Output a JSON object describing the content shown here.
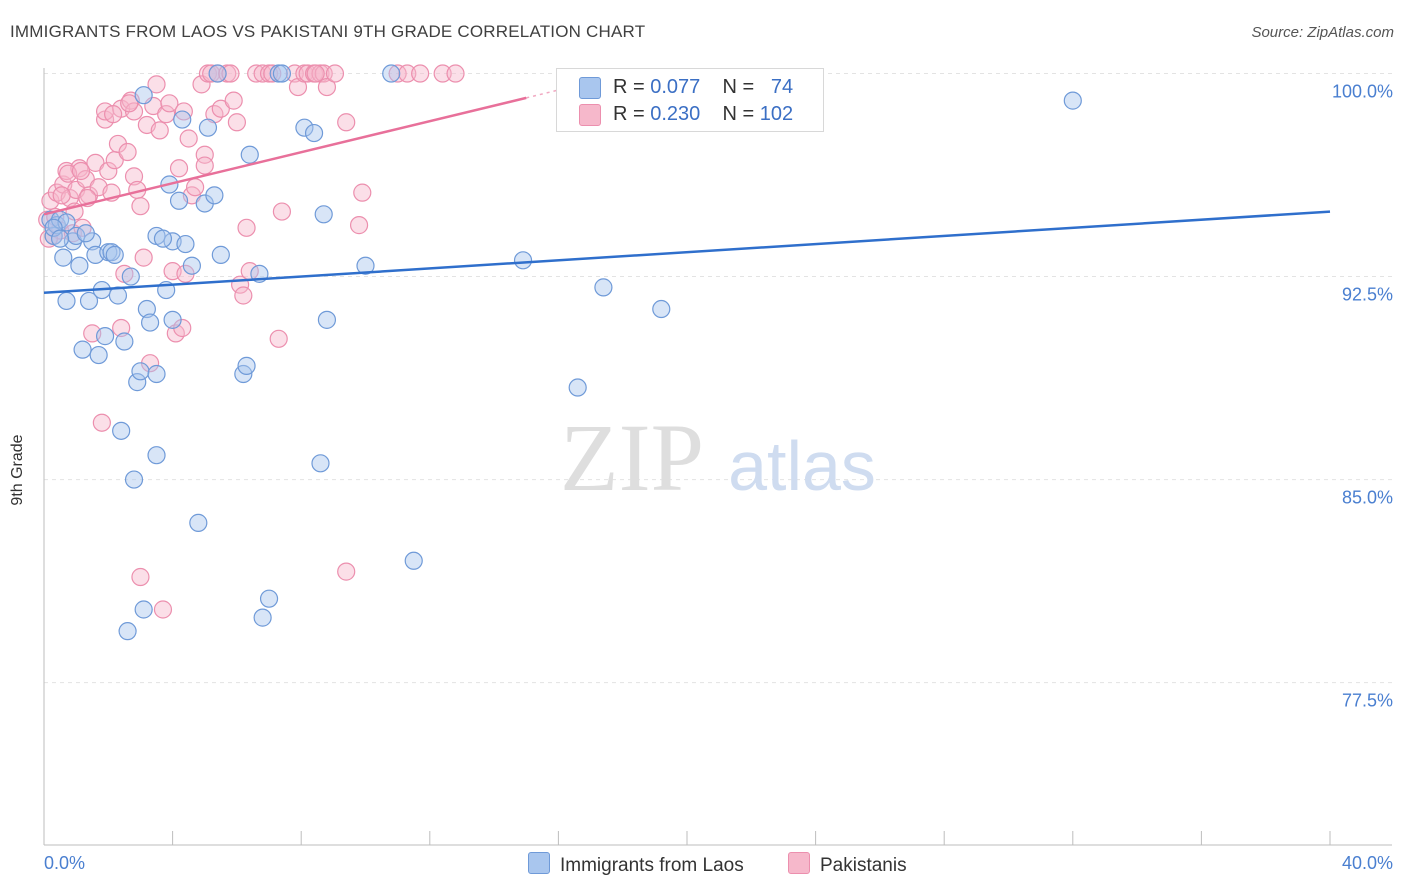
{
  "title": "IMMIGRANTS FROM LAOS VS PAKISTANI 9TH GRADE CORRELATION CHART",
  "source": "Source: ZipAtlas.com",
  "watermark": {
    "zip": "ZIP",
    "atlas": "atlas"
  },
  "legend": {
    "series1": {
      "r_label": "R = ",
      "r_value": "0.077",
      "n_label": "N = ",
      "n_value": "74"
    },
    "series2": {
      "r_label": "R = ",
      "r_value": "0.230",
      "n_label": "N = ",
      "n_value": "102"
    }
  },
  "bottom_legend": {
    "series1": "Immigrants from Laos",
    "series2": "Pakistanis"
  },
  "colors": {
    "blue_fill": "#a9c6ee",
    "blue_stroke": "#6f9ad8",
    "blue_line": "#2f6fcc",
    "pink_fill": "#f6b8cb",
    "pink_stroke": "#ec8fae",
    "pink_line": "#e8709a",
    "tick_label": "#4a7fd0",
    "grid": "#e3e3e3"
  },
  "chart_data": {
    "type": "scatter",
    "title": "IMMIGRANTS FROM LAOS VS PAKISTANI 9TH GRADE CORRELATION CHART",
    "xlabel": "",
    "ylabel": "9th Grade",
    "xlim": [
      0,
      40
    ],
    "ylim": [
      71.5,
      100.5
    ],
    "x_tick_labels": [
      "0.0%",
      "40.0%"
    ],
    "y_ticks": [
      77.5,
      85.0,
      92.5,
      100.0
    ],
    "y_tick_labels": [
      "77.5%",
      "85.0%",
      "92.5%",
      "100.0%"
    ],
    "grid": "horizontal dashed",
    "legend_position": "top-center",
    "series": [
      {
        "name": "Immigrants from Laos",
        "trend": {
          "x": [
            0,
            40
          ],
          "y": [
            91.9,
            94.9
          ]
        },
        "points": [
          [
            0.2,
            94.6
          ],
          [
            0.3,
            94.0
          ],
          [
            0.4,
            94.4
          ],
          [
            0.5,
            94.6
          ],
          [
            0.6,
            93.2
          ],
          [
            0.7,
            94.5
          ],
          [
            0.7,
            91.6
          ],
          [
            0.9,
            93.8
          ],
          [
            1.0,
            94.0
          ],
          [
            1.1,
            92.9
          ],
          [
            1.2,
            89.8
          ],
          [
            1.4,
            91.6
          ],
          [
            1.5,
            93.8
          ],
          [
            1.6,
            93.3
          ],
          [
            1.7,
            89.6
          ],
          [
            1.8,
            92.0
          ],
          [
            1.9,
            90.3
          ],
          [
            2.0,
            93.4
          ],
          [
            2.1,
            93.4
          ],
          [
            2.3,
            91.8
          ],
          [
            2.4,
            86.8
          ],
          [
            2.5,
            90.1
          ],
          [
            2.6,
            79.4
          ],
          [
            2.7,
            92.5
          ],
          [
            2.8,
            85.0
          ],
          [
            2.9,
            88.6
          ],
          [
            3.0,
            89.0
          ],
          [
            3.1,
            99.2
          ],
          [
            3.1,
            80.2
          ],
          [
            3.2,
            91.3
          ],
          [
            3.3,
            90.8
          ],
          [
            3.5,
            88.9
          ],
          [
            3.5,
            85.9
          ],
          [
            3.5,
            94.0
          ],
          [
            3.8,
            92.0
          ],
          [
            3.9,
            95.9
          ],
          [
            4.0,
            93.8
          ],
          [
            4.0,
            90.9
          ],
          [
            4.2,
            95.3
          ],
          [
            4.3,
            98.3
          ],
          [
            4.4,
            93.7
          ],
          [
            4.6,
            92.9
          ],
          [
            4.8,
            83.4
          ],
          [
            5.0,
            95.2
          ],
          [
            5.1,
            98.0
          ],
          [
            5.3,
            95.5
          ],
          [
            5.4,
            100.0
          ],
          [
            5.5,
            93.3
          ],
          [
            6.2,
            88.9
          ],
          [
            6.3,
            89.2
          ],
          [
            6.4,
            97.0
          ],
          [
            6.7,
            92.6
          ],
          [
            6.8,
            79.9
          ],
          [
            7.0,
            80.6
          ],
          [
            7.3,
            100.0
          ],
          [
            7.4,
            100.0
          ],
          [
            8.1,
            98.0
          ],
          [
            8.4,
            97.8
          ],
          [
            8.6,
            85.6
          ],
          [
            8.7,
            94.8
          ],
          [
            8.8,
            90.9
          ],
          [
            10.0,
            92.9
          ],
          [
            10.8,
            100.0
          ],
          [
            11.5,
            82.0
          ],
          [
            14.9,
            93.1
          ],
          [
            16.6,
            88.4
          ],
          [
            17.4,
            92.1
          ],
          [
            19.2,
            91.3
          ],
          [
            32.0,
            99.0
          ],
          [
            0.3,
            94.3
          ],
          [
            0.5,
            93.9
          ],
          [
            1.3,
            94.1
          ],
          [
            2.2,
            93.3
          ],
          [
            3.7,
            93.9
          ]
        ]
      },
      {
        "name": "Pakistanis",
        "trend": {
          "x": [
            0,
            15
          ],
          "y": [
            94.8,
            99.1
          ]
        },
        "trend_dash": {
          "x": [
            15,
            16.2
          ],
          "y": [
            99.1,
            99.45
          ]
        },
        "points": [
          [
            0.1,
            94.6
          ],
          [
            0.2,
            95.3
          ],
          [
            0.3,
            94.0
          ],
          [
            0.4,
            95.6
          ],
          [
            0.5,
            94.2
          ],
          [
            0.6,
            95.9
          ],
          [
            0.7,
            96.4
          ],
          [
            0.8,
            95.4
          ],
          [
            0.9,
            94.1
          ],
          [
            1.0,
            95.7
          ],
          [
            1.1,
            96.5
          ],
          [
            1.2,
            94.3
          ],
          [
            1.3,
            96.1
          ],
          [
            1.4,
            95.5
          ],
          [
            1.5,
            90.4
          ],
          [
            1.6,
            96.7
          ],
          [
            1.7,
            95.8
          ],
          [
            1.8,
            87.1
          ],
          [
            1.9,
            98.3
          ],
          [
            1.9,
            98.6
          ],
          [
            2.0,
            96.4
          ],
          [
            2.1,
            95.6
          ],
          [
            2.2,
            96.8
          ],
          [
            2.3,
            97.4
          ],
          [
            2.4,
            98.7
          ],
          [
            2.4,
            90.6
          ],
          [
            2.5,
            92.6
          ],
          [
            2.6,
            97.1
          ],
          [
            2.7,
            99.0
          ],
          [
            2.8,
            98.6
          ],
          [
            2.8,
            96.2
          ],
          [
            2.9,
            95.7
          ],
          [
            3.0,
            81.4
          ],
          [
            3.0,
            95.1
          ],
          [
            3.1,
            93.2
          ],
          [
            3.2,
            98.1
          ],
          [
            3.3,
            89.3
          ],
          [
            3.4,
            98.8
          ],
          [
            3.5,
            99.6
          ],
          [
            3.6,
            97.9
          ],
          [
            3.7,
            80.2
          ],
          [
            3.8,
            98.5
          ],
          [
            3.9,
            98.9
          ],
          [
            4.0,
            92.7
          ],
          [
            4.1,
            90.4
          ],
          [
            4.2,
            96.5
          ],
          [
            4.3,
            90.6
          ],
          [
            4.4,
            92.6
          ],
          [
            4.5,
            97.6
          ],
          [
            4.6,
            95.5
          ],
          [
            4.7,
            95.8
          ],
          [
            4.9,
            99.6
          ],
          [
            5.0,
            97.0
          ],
          [
            5.0,
            96.6
          ],
          [
            5.1,
            100.0
          ],
          [
            5.2,
            100.0
          ],
          [
            5.3,
            98.5
          ],
          [
            5.4,
            100.0
          ],
          [
            5.5,
            98.7
          ],
          [
            5.7,
            100.0
          ],
          [
            5.8,
            100.0
          ],
          [
            5.9,
            99.0
          ],
          [
            6.0,
            98.2
          ],
          [
            6.1,
            92.2
          ],
          [
            6.2,
            91.8
          ],
          [
            6.3,
            94.3
          ],
          [
            6.4,
            92.7
          ],
          [
            6.6,
            100.0
          ],
          [
            6.8,
            100.0
          ],
          [
            7.0,
            100.0
          ],
          [
            7.1,
            100.0
          ],
          [
            7.3,
            90.2
          ],
          [
            7.4,
            94.9
          ],
          [
            7.8,
            100.0
          ],
          [
            7.9,
            99.5
          ],
          [
            8.1,
            100.0
          ],
          [
            8.2,
            100.0
          ],
          [
            8.4,
            100.0
          ],
          [
            8.6,
            100.0
          ],
          [
            8.7,
            100.0
          ],
          [
            8.8,
            99.5
          ],
          [
            9.4,
            81.6
          ],
          [
            9.4,
            98.2
          ],
          [
            9.8,
            94.4
          ],
          [
            9.9,
            95.6
          ],
          [
            11.0,
            100.0
          ],
          [
            11.3,
            100.0
          ],
          [
            11.7,
            100.0
          ],
          [
            12.4,
            100.0
          ],
          [
            12.8,
            100.0
          ],
          [
            0.15,
            93.9
          ],
          [
            0.35,
            94.7
          ],
          [
            0.55,
            95.5
          ],
          [
            0.75,
            96.3
          ],
          [
            0.95,
            94.9
          ],
          [
            1.15,
            96.4
          ],
          [
            1.35,
            95.4
          ],
          [
            2.15,
            98.5
          ],
          [
            2.65,
            98.9
          ],
          [
            4.35,
            98.6
          ],
          [
            8.45,
            100.0
          ],
          [
            9.05,
            100.0
          ]
        ]
      }
    ]
  }
}
